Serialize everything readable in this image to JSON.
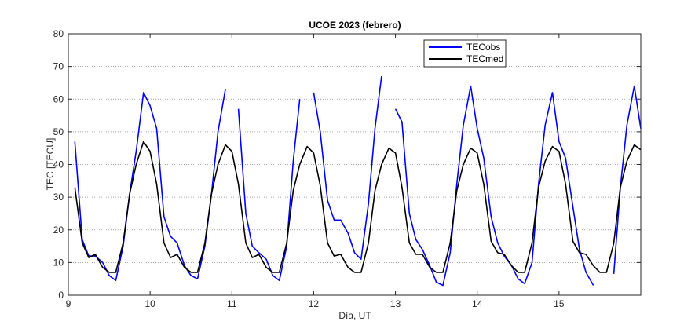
{
  "chart_data": {
    "type": "line",
    "title": "UCOE 2023 (febrero)",
    "xlabel": "Día, UT",
    "ylabel": "TEC [TECU]",
    "xlim": [
      9,
      16
    ],
    "ylim": [
      0,
      80
    ],
    "xticks": [
      9,
      10,
      11,
      12,
      13,
      14,
      15
    ],
    "yticks": [
      0,
      10,
      20,
      30,
      40,
      50,
      60,
      70,
      80
    ],
    "grid": "y-dotted",
    "legend_position": "top-right",
    "colors": {
      "TECobs": "#0000ff",
      "TECmed": "#000000"
    },
    "series": [
      {
        "name": "TECobs",
        "segments": [
          [
            [
              9.08,
              47
            ],
            [
              9.17,
              17
            ],
            [
              9.25,
              12
            ],
            [
              9.33,
              12
            ],
            [
              9.42,
              10
            ],
            [
              9.5,
              6
            ],
            [
              9.58,
              4.5
            ],
            [
              9.67,
              15
            ],
            [
              9.75,
              31
            ],
            [
              9.83,
              44
            ],
            [
              9.92,
              62
            ],
            [
              10.0,
              58
            ],
            [
              10.08,
              51
            ],
            [
              10.17,
              24
            ],
            [
              10.25,
              18
            ],
            [
              10.33,
              16
            ],
            [
              10.42,
              9
            ],
            [
              10.5,
              6
            ],
            [
              10.58,
              5
            ],
            [
              10.67,
              15
            ],
            [
              10.75,
              31
            ],
            [
              10.83,
              50
            ],
            [
              10.92,
              63
            ]
          ],
          [
            [
              11.08,
              57
            ],
            [
              11.17,
              25
            ],
            [
              11.25,
              15
            ],
            [
              11.33,
              13
            ],
            [
              11.42,
              11
            ],
            [
              11.5,
              6
            ],
            [
              11.58,
              4.5
            ],
            [
              11.67,
              15
            ],
            [
              11.75,
              41
            ],
            [
              11.83,
              60
            ]
          ],
          [
            [
              12.0,
              62
            ],
            [
              12.08,
              50
            ],
            [
              12.17,
              29
            ],
            [
              12.25,
              23
            ],
            [
              12.33,
              23
            ],
            [
              12.42,
              19
            ],
            [
              12.5,
              13
            ],
            [
              12.58,
              11
            ],
            [
              12.67,
              28
            ],
            [
              12.75,
              51
            ],
            [
              12.83,
              67
            ]
          ],
          [
            [
              13.0,
              57
            ],
            [
              13.08,
              53
            ],
            [
              13.17,
              25
            ],
            [
              13.25,
              17
            ],
            [
              13.33,
              14
            ],
            [
              13.42,
              9
            ],
            [
              13.5,
              4
            ],
            [
              13.58,
              3
            ],
            [
              13.67,
              13
            ],
            [
              13.75,
              34
            ],
            [
              13.83,
              52
            ],
            [
              13.92,
              64
            ],
            [
              14.0,
              51
            ],
            [
              14.08,
              42
            ],
            [
              14.17,
              24
            ],
            [
              14.25,
              16
            ],
            [
              14.33,
              12
            ],
            [
              14.42,
              9
            ],
            [
              14.5,
              5
            ],
            [
              14.58,
              3.5
            ],
            [
              14.67,
              10
            ],
            [
              14.75,
              34
            ],
            [
              14.83,
              52
            ],
            [
              14.92,
              62
            ],
            [
              15.0,
              47
            ],
            [
              15.08,
              42
            ],
            [
              15.17,
              27
            ],
            [
              15.25,
              14
            ],
            [
              15.33,
              7
            ],
            [
              15.42,
              3
            ]
          ],
          [
            [
              15.67,
              6.5
            ],
            [
              15.75,
              33
            ],
            [
              15.83,
              52
            ],
            [
              15.92,
              64
            ],
            [
              16.0,
              51
            ]
          ]
        ]
      },
      {
        "name": "TECmed",
        "segments": [
          [
            [
              9.08,
              33
            ],
            [
              9.17,
              16
            ],
            [
              9.25,
              11.5
            ],
            [
              9.33,
              12.5
            ],
            [
              9.42,
              8.5
            ],
            [
              9.5,
              7
            ],
            [
              9.58,
              7
            ],
            [
              9.67,
              16
            ],
            [
              9.75,
              31
            ],
            [
              9.83,
              40
            ],
            [
              9.92,
              47
            ],
            [
              10.0,
              44
            ],
            [
              10.08,
              34
            ],
            [
              10.17,
              16
            ],
            [
              10.25,
              11.5
            ],
            [
              10.33,
              12.5
            ],
            [
              10.42,
              8.5
            ],
            [
              10.5,
              7
            ],
            [
              10.58,
              7
            ],
            [
              10.67,
              16
            ],
            [
              10.75,
              31
            ],
            [
              10.83,
              40
            ],
            [
              10.92,
              46
            ],
            [
              11.0,
              44
            ],
            [
              11.08,
              34
            ],
            [
              11.17,
              16
            ],
            [
              11.25,
              11.5
            ],
            [
              11.33,
              12.5
            ],
            [
              11.42,
              8.5
            ],
            [
              11.5,
              7
            ],
            [
              11.58,
              7
            ],
            [
              11.67,
              16
            ],
            [
              11.75,
              32
            ],
            [
              11.83,
              40
            ],
            [
              11.92,
              45.5
            ],
            [
              12.0,
              43.5
            ],
            [
              12.08,
              33.5
            ],
            [
              12.17,
              16
            ],
            [
              12.25,
              12
            ],
            [
              12.33,
              12.5
            ],
            [
              12.42,
              8.5
            ],
            [
              12.5,
              7
            ],
            [
              12.58,
              7
            ],
            [
              12.67,
              16
            ],
            [
              12.75,
              32
            ],
            [
              12.83,
              40
            ],
            [
              12.92,
              45
            ],
            [
              13.0,
              43.5
            ],
            [
              13.08,
              33
            ],
            [
              13.17,
              16
            ],
            [
              13.25,
              12.5
            ],
            [
              13.33,
              12.5
            ],
            [
              13.42,
              8.5
            ],
            [
              13.5,
              7
            ],
            [
              13.58,
              7
            ],
            [
              13.67,
              16
            ],
            [
              13.75,
              32
            ],
            [
              13.83,
              40
            ],
            [
              13.92,
              45
            ],
            [
              14.0,
              43.5
            ],
            [
              14.08,
              34
            ],
            [
              14.17,
              16.5
            ],
            [
              14.25,
              13
            ],
            [
              14.33,
              12.5
            ],
            [
              14.42,
              9
            ],
            [
              14.5,
              7
            ],
            [
              14.58,
              7
            ],
            [
              14.67,
              16
            ],
            [
              14.75,
              33
            ],
            [
              14.83,
              41
            ],
            [
              14.92,
              45.5
            ],
            [
              15.0,
              44
            ],
            [
              15.08,
              34
            ],
            [
              15.17,
              16.5
            ],
            [
              15.25,
              13
            ],
            [
              15.33,
              12.5
            ],
            [
              15.42,
              9
            ],
            [
              15.5,
              7
            ],
            [
              15.58,
              7
            ],
            [
              15.67,
              16
            ],
            [
              15.75,
              33
            ],
            [
              15.83,
              41
            ],
            [
              15.92,
              46
            ],
            [
              16.0,
              44.5
            ]
          ]
        ]
      }
    ]
  }
}
